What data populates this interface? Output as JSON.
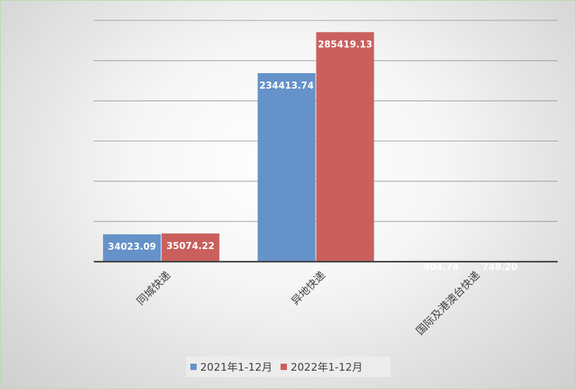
{
  "chart_data": {
    "type": "bar",
    "title": "",
    "xlabel": "",
    "ylabel": "",
    "categories": [
      "同城快递",
      "异地快递",
      "国际及港澳台快递"
    ],
    "series": [
      {
        "name": "2021年1-12月",
        "color": "#6592c9",
        "values": [
          34023.09,
          234413.74,
          904.74
        ],
        "labels": [
          "34023.09",
          "234413.74",
          "904.74"
        ]
      },
      {
        "name": "2022年1-12月",
        "color": "#c9605d",
        "values": [
          35074.22,
          285419.13,
          748.2
        ],
        "labels": [
          "35074.22",
          "285419.13",
          "748.20"
        ]
      }
    ],
    "ylim": [
      0,
      300000
    ],
    "grid": true,
    "legend_position": "bottom"
  }
}
